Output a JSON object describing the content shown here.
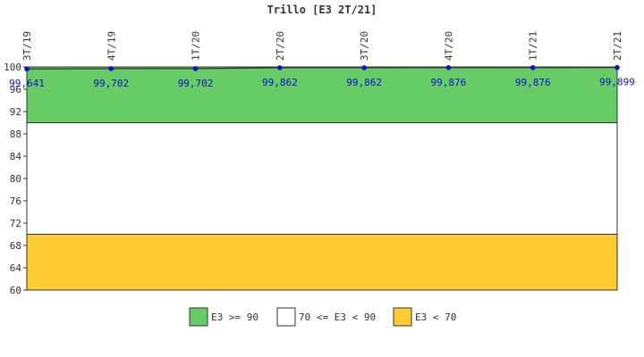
{
  "chart_data": {
    "type": "line",
    "title": "Trillo [E3 2T/21]",
    "xlabel": "",
    "ylabel": "",
    "categories": [
      "3T/19",
      "4T/19",
      "1T/20",
      "2T/20",
      "3T/20",
      "4T/20",
      "1T/21",
      "2T/21"
    ],
    "series": [
      {
        "values": [
          99.641,
          99.702,
          99.702,
          99.862,
          99.862,
          99.876,
          99.876,
          99.899
        ],
        "labels": [
          "99,641",
          "99,702",
          "99,702",
          "99,862",
          "99,862",
          "99,876",
          "99,876",
          "99,899"
        ],
        "color": "#1010cc"
      }
    ],
    "ylim": [
      60,
      100
    ],
    "yticks": [
      60,
      64,
      68,
      72,
      76,
      80,
      84,
      88,
      92,
      96,
      100
    ],
    "bands": [
      {
        "from": 90,
        "to": 100,
        "color": "#66cc66",
        "label": "E3 >= 90"
      },
      {
        "from": 70,
        "to": 90,
        "color": "#ffffff",
        "label": "70 <= E3 < 90"
      },
      {
        "from": 60,
        "to": 70,
        "color": "#ffcc33",
        "label": "E3 < 70"
      }
    ],
    "grid": false,
    "legend_position": "bottom"
  }
}
